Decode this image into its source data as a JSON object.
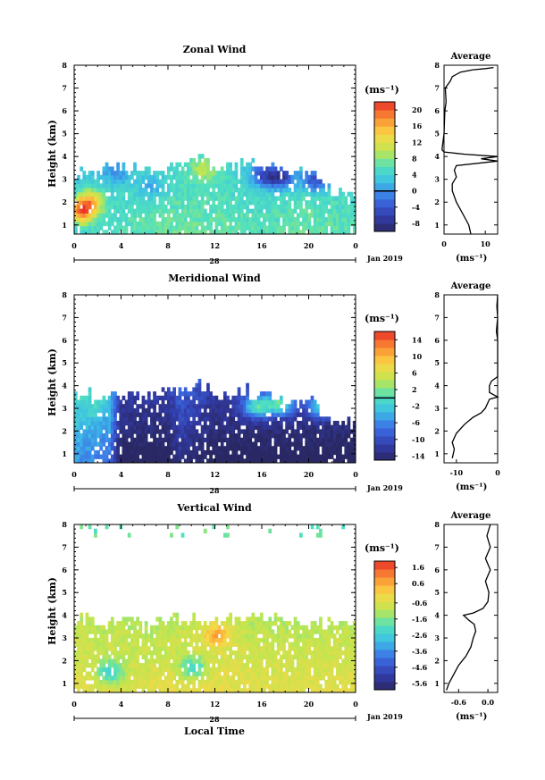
{
  "chart_data": [
    {
      "type": "heatmap",
      "title": "Zonal Wind",
      "xlabel": "",
      "ylabel": "Height (km)",
      "xlim": [
        0,
        24
      ],
      "ylim": [
        0.6,
        8
      ],
      "x_ticks": [
        "0",
        "4",
        "8",
        "12",
        "16",
        "20",
        "0"
      ],
      "y_ticks": [
        "1",
        "2",
        "3",
        "4",
        "5",
        "6",
        "7",
        "8"
      ],
      "day_label": "28",
      "month_label": "Jan 2019",
      "colorbar": {
        "unit": "(ms⁻¹)",
        "min": -10,
        "max": 22,
        "ticks": [
          "-8",
          "-4",
          "0",
          "4",
          "8",
          "12",
          "16",
          "20"
        ],
        "tick_values": [
          -8,
          -4,
          0,
          4,
          8,
          12,
          16,
          20
        ],
        "contour": 0
      },
      "data_top_profile": [
        [
          0,
          3.3
        ],
        [
          2,
          3.2
        ],
        [
          3,
          3.7
        ],
        [
          5,
          3.3
        ],
        [
          8,
          3.5
        ],
        [
          10,
          3.9
        ],
        [
          11,
          3.8
        ],
        [
          12,
          3.2
        ],
        [
          14,
          3.6
        ],
        [
          18,
          3.4
        ],
        [
          20,
          3.2
        ],
        [
          22,
          2.5
        ],
        [
          24,
          2.4
        ]
      ],
      "field": {
        "base": [
          [
            0,
            3
          ],
          [
            4,
            5
          ],
          [
            8,
            6
          ],
          [
            12,
            6
          ],
          [
            16,
            5
          ],
          [
            20,
            6
          ],
          [
            24,
            5
          ]
        ],
        "height_gradient": -1.5,
        "patches": [
          {
            "x": 3.5,
            "h": 3.2,
            "value": 1
          },
          {
            "x": 6.5,
            "h": 2.6,
            "value": 2
          },
          {
            "x": 16,
            "h": 3.1,
            "value": -3
          },
          {
            "x": 17.5,
            "h": 3.0,
            "value": -5
          },
          {
            "x": 20.5,
            "h": 2.9,
            "value": -4
          },
          {
            "x": 0.5,
            "h": 1.5,
            "value": 18
          },
          {
            "x": 1.2,
            "h": 2.0,
            "value": 14
          },
          {
            "x": 11,
            "h": 3.4,
            "value": 11
          }
        ]
      },
      "average_profile": {
        "title": "Average",
        "xlabel": "(ms⁻¹)",
        "xlim": [
          0,
          13
        ],
        "x_ticks": [
          "0",
          "10"
        ],
        "x_tick_values": [
          0,
          10
        ],
        "points": [
          [
            6.5,
            0.6
          ],
          [
            6,
            1.0
          ],
          [
            4.5,
            1.5
          ],
          [
            3,
            2.0
          ],
          [
            2,
            2.5
          ],
          [
            2,
            2.8
          ],
          [
            3,
            3.1
          ],
          [
            2.5,
            3.4
          ],
          [
            3,
            3.6
          ],
          [
            13,
            3.8
          ],
          [
            9,
            3.9
          ],
          [
            13,
            4.0
          ],
          [
            5,
            4.1
          ],
          [
            0,
            4.2
          ],
          [
            -0.5,
            4.3
          ],
          [
            0,
            5.0
          ],
          [
            0.2,
            6.0
          ],
          [
            0.5,
            6.4
          ],
          [
            0.3,
            7.0
          ],
          [
            1.5,
            7.3
          ],
          [
            2,
            7.5
          ],
          [
            4,
            7.7
          ],
          [
            7,
            7.8
          ],
          [
            10,
            7.85
          ],
          [
            12,
            7.9
          ]
        ]
      }
    },
    {
      "type": "heatmap",
      "title": "Meridional Wind",
      "xlabel": "",
      "ylabel": "Height (km)",
      "xlim": [
        0,
        24
      ],
      "ylim": [
        0.6,
        8
      ],
      "x_ticks": [
        "0",
        "4",
        "8",
        "12",
        "16",
        "20",
        "0"
      ],
      "y_ticks": [
        "1",
        "2",
        "3",
        "4",
        "5",
        "6",
        "7",
        "8"
      ],
      "day_label": "28",
      "month_label": "Jan 2019",
      "colorbar": {
        "unit": "(ms⁻¹)",
        "min": -15,
        "max": 16,
        "ticks": [
          "-14",
          "-10",
          "-6",
          "-2",
          "2",
          "6",
          "10",
          "14"
        ],
        "tick_values": [
          -14,
          -10,
          -6,
          -2,
          2,
          6,
          10,
          14
        ],
        "contour": 0
      },
      "data_top_profile": [
        [
          0,
          3.4
        ],
        [
          2,
          3.5
        ],
        [
          4,
          3.6
        ],
        [
          6,
          3.4
        ],
        [
          9,
          3.8
        ],
        [
          11,
          3.9
        ],
        [
          12,
          3.4
        ],
        [
          14,
          3.7
        ],
        [
          18,
          3.4
        ],
        [
          20,
          3.3
        ],
        [
          22,
          2.3
        ],
        [
          24,
          2.2
        ]
      ],
      "field": {
        "base": [
          [
            0,
            -3
          ],
          [
            3,
            -5
          ],
          [
            4,
            -14
          ],
          [
            8,
            -14
          ],
          [
            9,
            -11
          ],
          [
            12,
            -14
          ],
          [
            16,
            -14
          ],
          [
            20,
            -14
          ],
          [
            24,
            -14
          ]
        ],
        "height_gradient": 3,
        "patches": [
          {
            "x": 1.5,
            "h": 3.0,
            "value": -2
          },
          {
            "x": 15.5,
            "h": 3.0,
            "value": -1
          },
          {
            "x": 17.5,
            "h": 3.1,
            "value": -1
          },
          {
            "x": 21,
            "h": 3.0,
            "value": -2
          }
        ]
      },
      "average_profile": {
        "title": "Average",
        "xlabel": "(ms⁻¹)",
        "xlim": [
          -13,
          0
        ],
        "x_ticks": [
          "-10",
          "0"
        ],
        "x_tick_values": [
          -10,
          0
        ],
        "points": [
          [
            -11,
            0.8
          ],
          [
            -10.5,
            1.2
          ],
          [
            -11,
            1.5
          ],
          [
            -10,
            1.9
          ],
          [
            -8,
            2.3
          ],
          [
            -6,
            2.6
          ],
          [
            -4,
            2.8
          ],
          [
            -3,
            3.0
          ],
          [
            -2,
            3.4
          ],
          [
            0,
            3.5
          ],
          [
            -2,
            3.7
          ],
          [
            -2,
            4.0
          ],
          [
            -1.5,
            4.2
          ],
          [
            0,
            4.4
          ],
          [
            0,
            5.0
          ],
          [
            0,
            6.0
          ],
          [
            -0.3,
            6.4
          ],
          [
            0,
            7.0
          ],
          [
            -0.2,
            7.5
          ],
          [
            0,
            8.0
          ]
        ]
      }
    },
    {
      "type": "heatmap",
      "title": "Vertical Wind",
      "xlabel": "Local Time",
      "ylabel": "Height (km)",
      "xlim": [
        0,
        24
      ],
      "ylim": [
        0.6,
        8
      ],
      "x_ticks": [
        "0",
        "4",
        "8",
        "12",
        "16",
        "20",
        "0"
      ],
      "y_ticks": [
        "1",
        "2",
        "3",
        "4",
        "5",
        "6",
        "7",
        "8"
      ],
      "day_label": "28",
      "month_label": "Jan 2019",
      "colorbar": {
        "unit": "(ms⁻¹)",
        "min": -6,
        "max": 2,
        "ticks": [
          "-5.6",
          "-4.6",
          "-3.6",
          "-2.6",
          "-1.6",
          "-0.6",
          "0.6",
          "1.6"
        ],
        "tick_values": [
          -5.6,
          -4.6,
          -3.6,
          -2.6,
          -1.6,
          -0.6,
          0.6,
          1.6
        ],
        "contour": null
      },
      "data_top_profile": [
        [
          0,
          3.7
        ],
        [
          4,
          3.6
        ],
        [
          8,
          3.7
        ],
        [
          12,
          3.6
        ],
        [
          16,
          3.8
        ],
        [
          20,
          3.5
        ],
        [
          24,
          3.5
        ]
      ],
      "field": {
        "base": [
          [
            0,
            -0.7
          ],
          [
            6,
            -0.8
          ],
          [
            12,
            -0.6
          ],
          [
            18,
            -0.8
          ],
          [
            24,
            -0.7
          ]
        ],
        "height_gradient": -0.4,
        "patches": [
          {
            "x": 12,
            "h": 3.1,
            "value": 0.8
          },
          {
            "x": 10,
            "h": 1.6,
            "value": -2.2
          },
          {
            "x": 3,
            "h": 1.4,
            "value": -2.5
          }
        ]
      },
      "average_profile": {
        "title": "Average",
        "xlabel": "(ms⁻¹)",
        "xlim": [
          -0.9,
          0.2
        ],
        "x_ticks": [
          "-0.6",
          "0.0"
        ],
        "x_tick_values": [
          -0.6,
          0.0
        ],
        "points": [
          [
            -0.85,
            0.7
          ],
          [
            -0.8,
            1.0
          ],
          [
            -0.7,
            1.4
          ],
          [
            -0.6,
            1.8
          ],
          [
            -0.45,
            2.2
          ],
          [
            -0.35,
            2.6
          ],
          [
            -0.3,
            3.0
          ],
          [
            -0.25,
            3.3
          ],
          [
            -0.28,
            3.6
          ],
          [
            -0.4,
            3.8
          ],
          [
            -0.5,
            4.0
          ],
          [
            -0.3,
            4.1
          ],
          [
            -0.1,
            4.3
          ],
          [
            0.0,
            4.6
          ],
          [
            0.02,
            5.0
          ],
          [
            -0.05,
            5.5
          ],
          [
            0.05,
            6.0
          ],
          [
            -0.05,
            6.5
          ],
          [
            0.05,
            7.0
          ],
          [
            -0.02,
            7.5
          ],
          [
            0.05,
            8.0
          ]
        ]
      }
    }
  ]
}
